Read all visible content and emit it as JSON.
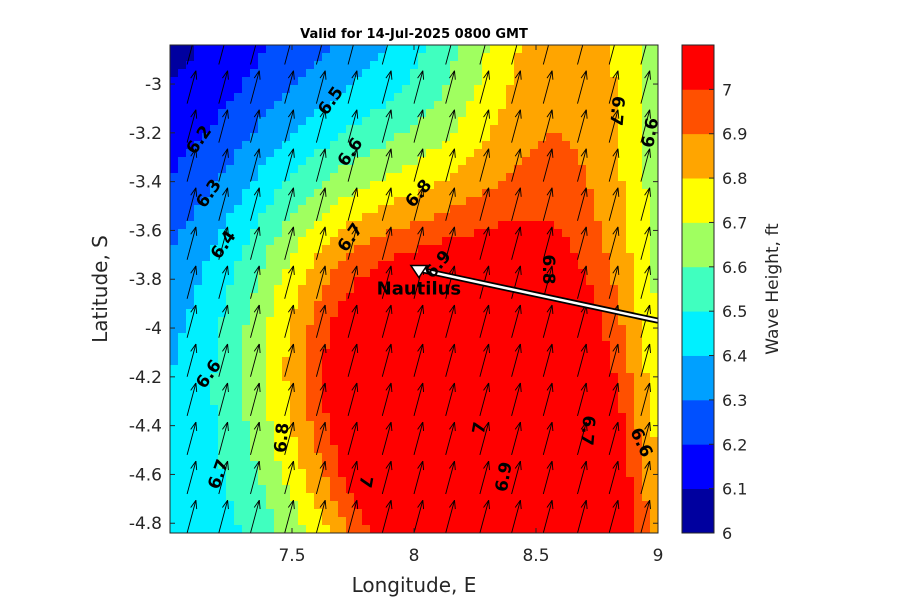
{
  "chart_data": {
    "type": "contour",
    "title": "Valid for 14-Jul-2025 0800 GMT",
    "xlabel": "Longitude, E",
    "ylabel": "Latitude, S",
    "xlim": [
      7.0,
      9.0
    ],
    "ylim": [
      -4.84,
      -2.84
    ],
    "xticks": [
      "7.5",
      "8",
      "8.5",
      "9"
    ],
    "yticks": [
      "-3",
      "-3.2",
      "-3.4",
      "-3.6",
      "-3.8",
      "-4",
      "-4.2",
      "-4.4",
      "-4.6",
      "-4.8"
    ],
    "colorbar": {
      "label": "Wave Height, ft",
      "min": 6.0,
      "max": 7.1,
      "levels": [
        6.0,
        6.1,
        6.2,
        6.3,
        6.4,
        6.5,
        6.6,
        6.7,
        6.8,
        6.9,
        7.0,
        7.1
      ],
      "ticks": [
        "6",
        "6.1",
        "6.2",
        "6.3",
        "6.4",
        "6.5",
        "6.6",
        "6.7",
        "6.8",
        "6.9",
        "7"
      ],
      "colors": [
        "#00009f",
        "#0000ff",
        "#0050ff",
        "#00a0ff",
        "#00f0ff",
        "#40ffbf",
        "#a0ff60",
        "#ffff00",
        "#ffa500",
        "#ff5000",
        "#ff0000"
      ]
    },
    "contour_labels": [
      {
        "text": "6.2",
        "lon": 7.12,
        "lat": -3.23,
        "angle": -55
      },
      {
        "text": "6.3",
        "lon": 7.16,
        "lat": -3.45,
        "angle": -55
      },
      {
        "text": "6.4",
        "lon": 7.22,
        "lat": -3.66,
        "angle": -55
      },
      {
        "text": "6.5",
        "lon": 7.66,
        "lat": -3.07,
        "angle": -55
      },
      {
        "text": "6.6",
        "lon": 7.74,
        "lat": -3.28,
        "angle": -55
      },
      {
        "text": "6.6",
        "lon": 7.16,
        "lat": -4.19,
        "angle": -55
      },
      {
        "text": "6.7",
        "lon": 7.74,
        "lat": -3.63,
        "angle": -55
      },
      {
        "text": "6.7",
        "lon": 7.2,
        "lat": -4.6,
        "angle": -70
      },
      {
        "text": "6.8",
        "lon": 8.02,
        "lat": -3.45,
        "angle": -50
      },
      {
        "text": "6.8",
        "lon": 7.46,
        "lat": -4.45,
        "angle": -85
      },
      {
        "text": "6.8",
        "lon": 8.55,
        "lat": -3.76,
        "angle": 90
      },
      {
        "text": "6.9",
        "lon": 8.1,
        "lat": -3.74,
        "angle": -50
      },
      {
        "text": "6.9",
        "lon": 8.37,
        "lat": -4.61,
        "angle": -80
      },
      {
        "text": "7",
        "lon": 8.27,
        "lat": -4.41,
        "angle": -80
      },
      {
        "text": "7",
        "lon": 7.8,
        "lat": -4.63,
        "angle": 100
      },
      {
        "text": "6.7",
        "lon": 8.83,
        "lat": -3.11,
        "angle": 95
      },
      {
        "text": "6.7",
        "lon": 8.71,
        "lat": -4.42,
        "angle": 95
      },
      {
        "text": "6.6",
        "lon": 8.97,
        "lat": -3.2,
        "angle": -80
      },
      {
        "text": "6.6",
        "lon": 8.93,
        "lat": -4.47,
        "angle": 65
      }
    ],
    "arrows": {
      "lons": [
        7.07,
        7.2,
        7.33,
        7.47,
        7.6,
        7.73,
        7.87,
        8.0,
        8.13,
        8.27,
        8.4,
        8.53,
        8.67,
        8.8,
        8.93
      ],
      "lats": [
        -2.92,
        -3.08,
        -3.24,
        -3.4,
        -3.56,
        -3.72,
        -3.88,
        -4.04,
        -4.2,
        -4.36,
        -4.52,
        -4.68,
        -4.84
      ],
      "direction_from_north_deg": 15
    },
    "station": {
      "name": "Nautilus",
      "lon": 8.02,
      "lat": -3.76
    },
    "route": [
      [
        8.02,
        -3.76
      ],
      [
        9.0,
        -3.97
      ]
    ]
  }
}
